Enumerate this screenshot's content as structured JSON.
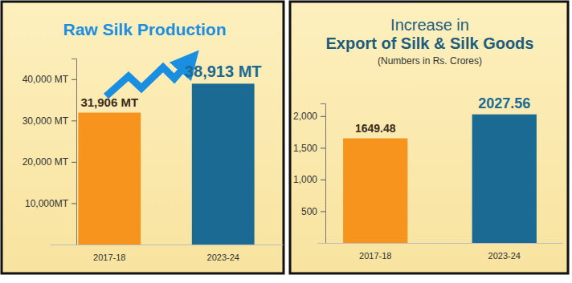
{
  "chart_data": [
    {
      "type": "bar",
      "title": "Raw Silk Production",
      "categories": [
        "2017-18",
        "2023-24"
      ],
      "values": [
        31906,
        38913
      ],
      "value_labels": [
        "31,906 MT",
        "38,913 MT"
      ],
      "data_labels": true,
      "colors": [
        "#f7941d",
        "#1a6a93"
      ],
      "ylim": [
        0,
        45000
      ],
      "yticks": [
        {
          "value": 10000,
          "label": "10,000MT"
        },
        {
          "value": 20000,
          "label": "20,000 MT"
        },
        {
          "value": 30000,
          "label": "30,000 MT"
        },
        {
          "value": 40000,
          "label": "40,000 MT"
        }
      ],
      "grid": false
    },
    {
      "type": "bar",
      "title": "Increase in\nExport of Silk & Silk Goods",
      "subtitle": "(Numbers in Rs. Crores)",
      "categories": [
        "2017-18",
        "2023-24"
      ],
      "values": [
        1649.48,
        2027.56
      ],
      "data_labels": true,
      "colors": [
        "#f7941d",
        "#1a6a93"
      ],
      "ylim": [
        0,
        2200
      ],
      "yticks": [
        500,
        {
          "value": 1000,
          "label": "1,000"
        },
        {
          "value": 1500,
          "label": "1,500"
        },
        {
          "value": 2000,
          "label": "2,000"
        }
      ],
      "grid": false
    }
  ]
}
